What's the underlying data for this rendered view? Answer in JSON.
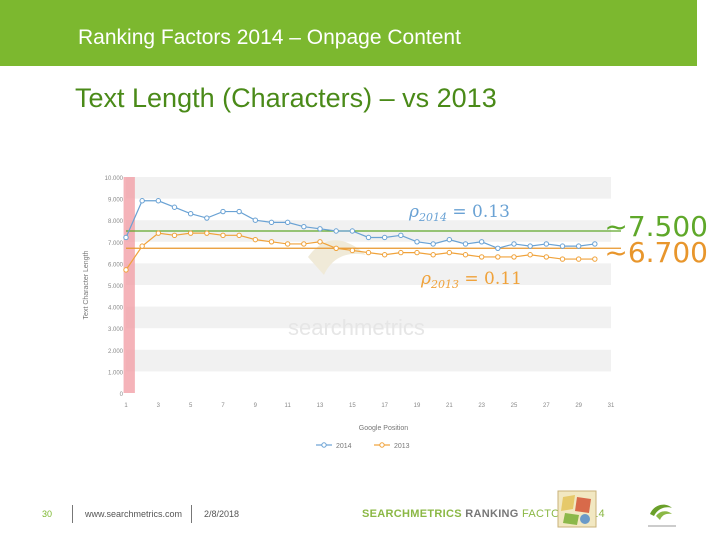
{
  "header": {
    "title": "Ranking Factors 2014 – Onpage Content"
  },
  "subtitle": "Text Length (Characters) – vs 2013",
  "annotations": {
    "avg_2014": "~7.500",
    "avg_2013": "~6.700"
  },
  "colors": {
    "green": "#7cb82f",
    "series2014": "#6aa2d4",
    "series2013": "#f0a23a",
    "line2014": "#5fa82a",
    "line2013": "#e8962c",
    "highlight": "#f2a0a8"
  },
  "chart_data": {
    "type": "line",
    "xlabel": "Google Position",
    "ylabel": "Text Character Length",
    "x": [
      1,
      2,
      3,
      4,
      5,
      6,
      7,
      8,
      9,
      10,
      11,
      12,
      13,
      14,
      15,
      16,
      17,
      18,
      19,
      20,
      21,
      22,
      23,
      24,
      25,
      26,
      27,
      28,
      29,
      30
    ],
    "x_ticks": [
      1,
      3,
      5,
      7,
      9,
      11,
      13,
      15,
      17,
      19,
      21,
      23,
      25,
      27,
      29,
      31
    ],
    "xlim": [
      1,
      31
    ],
    "ylim": [
      0,
      10000
    ],
    "y_ticks": [
      0,
      1000,
      2000,
      3000,
      4000,
      5000,
      6000,
      7000,
      8000,
      9000,
      10000
    ],
    "y_tick_labels": [
      "0",
      "1.000",
      "2.000",
      "3.000",
      "4.000",
      "5.000",
      "6.000",
      "7.000",
      "8.000",
      "9.000",
      "10.000"
    ],
    "highlight_positions": [
      1,
      2
    ],
    "series": [
      {
        "name": "2014",
        "values": [
          7200,
          8900,
          8900,
          8600,
          8300,
          8100,
          8400,
          8400,
          8000,
          7900,
          7900,
          7700,
          7600,
          7500,
          7500,
          7200,
          7200,
          7300,
          7000,
          6900,
          7100,
          6900,
          7000,
          6700,
          6900,
          6800,
          6900,
          6800,
          6800,
          6900
        ]
      },
      {
        "name": "2013",
        "values": [
          5700,
          6800,
          7400,
          7300,
          7400,
          7400,
          7300,
          7300,
          7100,
          7000,
          6900,
          6900,
          7000,
          6700,
          6600,
          6500,
          6400,
          6500,
          6500,
          6400,
          6500,
          6400,
          6300,
          6300,
          6300,
          6400,
          6300,
          6200,
          6200,
          6200
        ]
      }
    ],
    "correlations": [
      {
        "text_rho": "ρ",
        "text_sub": "2014",
        "text_value": "= 0.13"
      },
      {
        "text_rho": "ρ",
        "text_sub": "2013",
        "text_value": "= 0.11"
      }
    ],
    "reference_lines": {
      "avg_2014": 7500,
      "avg_2013": 6700
    },
    "watermark": "searchmetrics"
  },
  "footer": {
    "page_number": "30",
    "url": "www.searchmetrics.com",
    "date": "2/8/2018",
    "brand_a": "SEARCHMETRICS",
    "brand_b": " RANKING",
    "brand_c": " FACTORS 2014"
  }
}
